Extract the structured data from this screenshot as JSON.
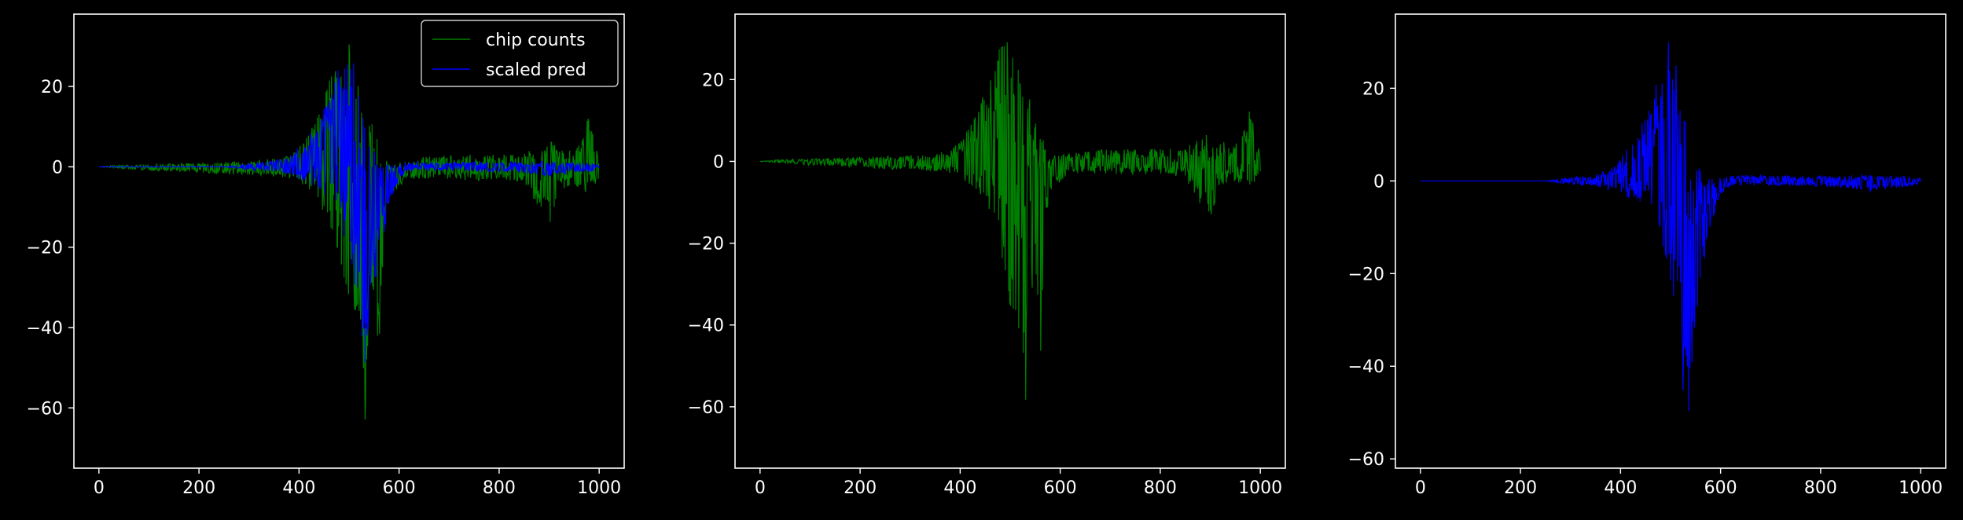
{
  "figure": {
    "background": "#000000",
    "axis_color": "#ffffff",
    "text_color": "#ffffff"
  },
  "chart_data": [
    {
      "type": "line",
      "title": "",
      "xlabel": "",
      "ylabel": "",
      "xlim": [
        -50,
        1050
      ],
      "ylim": [
        -75,
        38
      ],
      "xticks": [
        0,
        200,
        400,
        600,
        800,
        1000
      ],
      "yticks": [
        -60,
        -40,
        -20,
        0,
        20
      ],
      "xtick_labels": [
        "0",
        "200",
        "400",
        "600",
        "800",
        "1000"
      ],
      "ytick_labels": [
        "−60",
        "−40",
        "−20",
        "0",
        "20"
      ],
      "grid": false,
      "legend": {
        "placement": "upper right",
        "entries": [
          "chip counts",
          "scaled pred"
        ]
      },
      "series": [
        {
          "name": "chip counts",
          "color": "#008000",
          "x": [
            0,
            50,
            100,
            150,
            200,
            250,
            300,
            350,
            380,
            400,
            420,
            440,
            460,
            480,
            490,
            500,
            510,
            520,
            530,
            540,
            550,
            560,
            570,
            580,
            600,
            620,
            650,
            700,
            750,
            800,
            850,
            900,
            920,
            950,
            980,
            1000
          ],
          "upper": [
            0,
            0.5,
            0.6,
            0.8,
            1,
            1.2,
            1.5,
            2,
            3,
            5,
            9,
            14,
            22,
            28,
            30,
            31,
            26,
            20,
            18,
            16,
            12,
            8,
            4,
            2,
            1.5,
            2,
            2.5,
            3,
            3,
            3,
            3.5,
            7,
            5,
            4,
            13,
            2
          ],
          "lower": [
            0,
            -0.5,
            -1,
            -1,
            -1.5,
            -2,
            -2,
            -2.5,
            -3,
            -4,
            -6,
            -9,
            -14,
            -22,
            -28,
            -35,
            -38,
            -45,
            -70,
            -40,
            -30,
            -53,
            -15,
            -8,
            -5,
            -3,
            -3,
            -3,
            -3.5,
            -3,
            -4,
            -15,
            -6,
            -5,
            -7,
            -3
          ]
        },
        {
          "name": "scaled pred",
          "color": "#0000ff",
          "x": [
            0,
            50,
            100,
            150,
            200,
            250,
            300,
            350,
            380,
            400,
            420,
            440,
            460,
            480,
            490,
            500,
            510,
            520,
            530,
            540,
            550,
            560,
            570,
            580,
            600,
            620,
            650,
            700,
            750,
            800,
            850,
            900,
            920,
            950,
            980,
            1000
          ],
          "upper": [
            0,
            0,
            0,
            0,
            0,
            0,
            0.8,
            1.5,
            2.5,
            5,
            8,
            12,
            17,
            25,
            28,
            33,
            27,
            18,
            13,
            8,
            5,
            3,
            1.5,
            0.8,
            1,
            1.2,
            1.2,
            1.2,
            1.2,
            1.2,
            1.2,
            1.5,
            1.2,
            1,
            1,
            0.5
          ],
          "lower": [
            0,
            0,
            0,
            0,
            0,
            0,
            -0.8,
            -1.2,
            -2,
            -3,
            -4,
            -6,
            -8,
            -12,
            -18,
            -22,
            -30,
            -35,
            -57,
            -45,
            -32,
            -22,
            -18,
            -10,
            -3,
            -1,
            -1,
            -1,
            -1.2,
            -1.2,
            -1.5,
            -2.5,
            -2,
            -1.5,
            -1.2,
            -0.5
          ]
        }
      ]
    },
    {
      "type": "line",
      "title": "",
      "xlabel": "",
      "ylabel": "",
      "xlim": [
        -50,
        1050
      ],
      "ylim": [
        -75,
        36
      ],
      "xticks": [
        0,
        200,
        400,
        600,
        800,
        1000
      ],
      "yticks": [
        -60,
        -40,
        -20,
        0,
        20
      ],
      "xtick_labels": [
        "0",
        "200",
        "400",
        "600",
        "800",
        "1000"
      ],
      "ytick_labels": [
        "−60",
        "−40",
        "−20",
        "0",
        "20"
      ],
      "grid": false,
      "series": [
        {
          "color": "#008000",
          "x": [
            0,
            50,
            100,
            150,
            200,
            250,
            300,
            350,
            380,
            400,
            420,
            440,
            460,
            480,
            490,
            500,
            510,
            520,
            530,
            540,
            550,
            560,
            570,
            580,
            600,
            620,
            650,
            700,
            750,
            800,
            850,
            900,
            920,
            950,
            980,
            1000
          ],
          "upper": [
            0,
            0.5,
            0.6,
            0.8,
            1,
            1.2,
            1.5,
            2,
            3,
            5,
            9,
            14,
            22,
            28,
            30,
            31,
            26,
            20,
            18,
            16,
            12,
            8,
            4,
            2,
            1.5,
            2,
            2.5,
            3,
            3,
            3,
            3.5,
            7,
            5,
            4,
            13,
            2
          ],
          "lower": [
            0,
            -0.5,
            -1,
            -1,
            -1.5,
            -2,
            -2,
            -2.5,
            -3,
            -4,
            -6,
            -9,
            -14,
            -22,
            -28,
            -35,
            -38,
            -45,
            -70,
            -40,
            -30,
            -53,
            -15,
            -8,
            -5,
            -3,
            -3,
            -3,
            -3.5,
            -3,
            -4,
            -15,
            -6,
            -5,
            -7,
            -3
          ]
        }
      ]
    },
    {
      "type": "line",
      "title": "",
      "xlabel": "",
      "ylabel": "",
      "xlim": [
        -50,
        1050
      ],
      "ylim": [
        -62,
        36
      ],
      "xticks": [
        0,
        200,
        400,
        600,
        800,
        1000
      ],
      "yticks": [
        -60,
        -40,
        -20,
        0,
        20
      ],
      "xtick_labels": [
        "0",
        "200",
        "400",
        "600",
        "800",
        "1000"
      ],
      "ytick_labels": [
        "−60",
        "−40",
        "−20",
        "0",
        "20"
      ],
      "grid": false,
      "series": [
        {
          "color": "#0000ff",
          "x": [
            0,
            50,
            100,
            150,
            200,
            250,
            300,
            350,
            380,
            400,
            420,
            440,
            460,
            480,
            490,
            500,
            510,
            520,
            530,
            540,
            550,
            560,
            570,
            580,
            600,
            620,
            650,
            700,
            750,
            800,
            850,
            900,
            920,
            950,
            980,
            1000
          ],
          "upper": [
            0,
            0,
            0,
            0,
            0,
            0,
            0.8,
            1.5,
            2.5,
            5,
            8,
            12,
            17,
            25,
            28,
            33,
            27,
            18,
            13,
            8,
            5,
            3,
            1.5,
            0.8,
            1,
            1.2,
            1.2,
            1.2,
            1.2,
            1.2,
            1.2,
            1.5,
            1.2,
            1,
            1,
            0.5
          ],
          "lower": [
            0,
            0,
            0,
            0,
            0,
            0,
            -0.8,
            -1.2,
            -2,
            -3,
            -4,
            -6,
            -8,
            -12,
            -18,
            -22,
            -30,
            -35,
            -57,
            -45,
            -32,
            -22,
            -18,
            -10,
            -3,
            -1,
            -1,
            -1,
            -1.2,
            -1.2,
            -1.5,
            -2.5,
            -2,
            -1.5,
            -1.2,
            -0.5
          ]
        }
      ]
    }
  ]
}
